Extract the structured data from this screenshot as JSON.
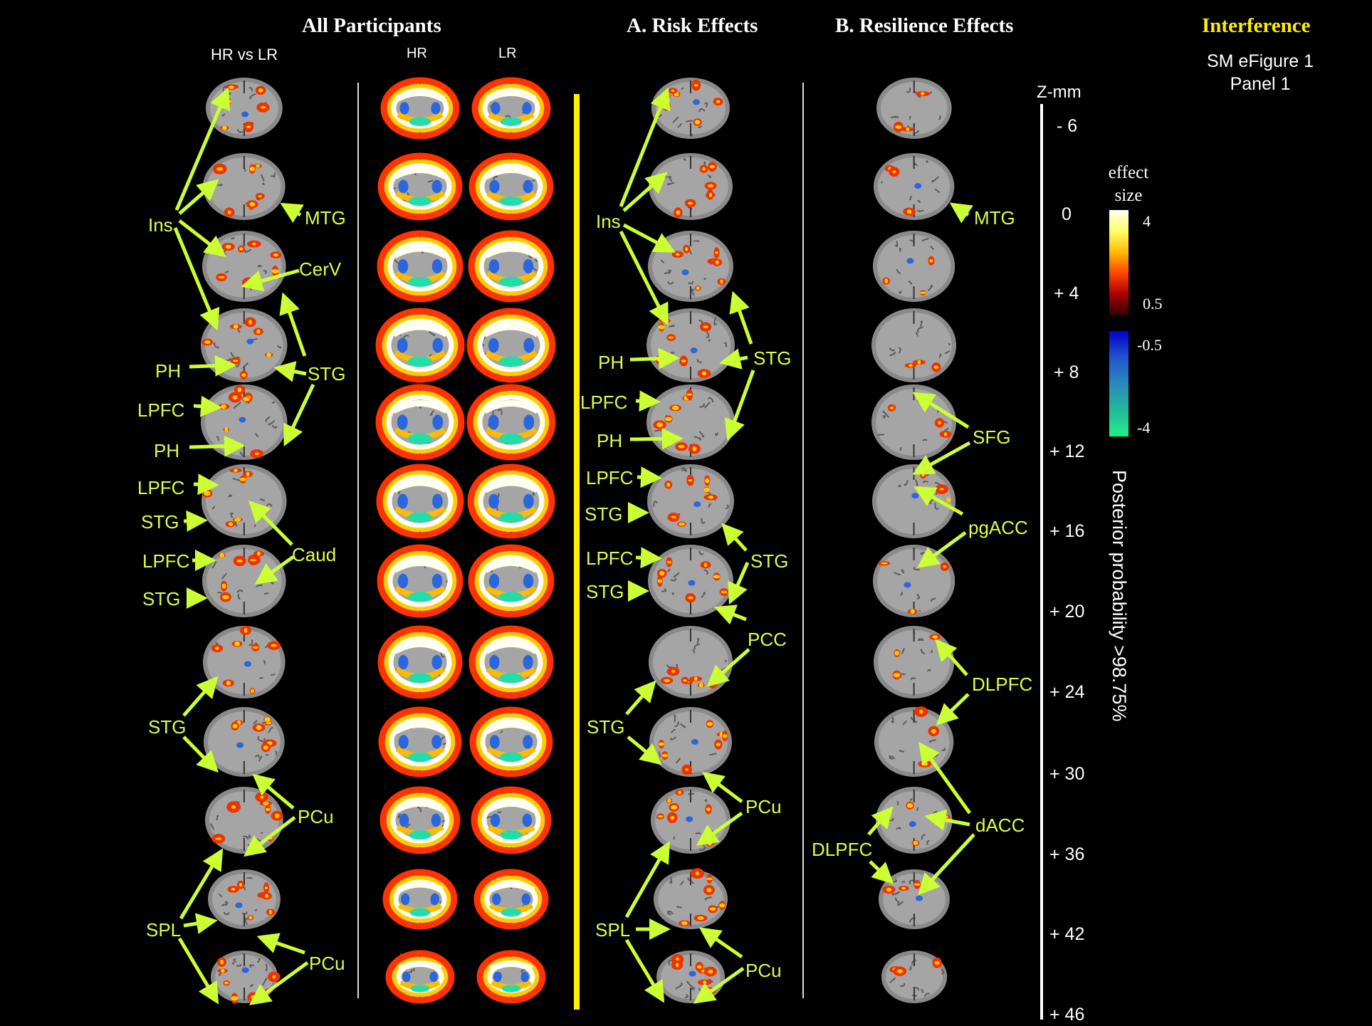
{
  "headers": {
    "all_participants": "All Participants",
    "risk": "A. Risk Effects",
    "resilience": "B. Resilience Effects",
    "interference": "Interference"
  },
  "subheaders": {
    "hr_vs_lr": "HR vs LR",
    "hr": "HR",
    "lr": "LR"
  },
  "caption": {
    "line1": "SM eFigure 1",
    "line2": "Panel 1"
  },
  "z_axis": {
    "title": "Z-mm",
    "ticks": [
      "- 6",
      "0",
      "+ 4",
      "+ 8",
      "+ 12",
      "+ 16",
      "+ 20",
      "+ 24",
      "+ 30",
      "+ 36",
      "+ 42",
      "+ 46"
    ]
  },
  "colorbar": {
    "title_line1": "effect",
    "title_line2": "size",
    "pos_max": "4",
    "pos_min": "0.5",
    "neg_max": "-0.5",
    "neg_min": "-4",
    "pos_colors": [
      "#fffff0",
      "#ffff66",
      "#ffbb00",
      "#ff4400",
      "#aa0000",
      "#300000"
    ],
    "neg_colors": [
      "#0000cc",
      "#2255cc",
      "#2a88bb",
      "#22bb99",
      "#22ee88"
    ]
  },
  "threshold_label": "Posterior probability >98.75%",
  "region_labels": {
    "hrlr": {
      "ins": "Ins",
      "mtg": "MTG",
      "cerv": "CerV",
      "ph1": "PH",
      "stg1": "STG",
      "lpfc1": "LPFC",
      "ph2": "PH",
      "lpfc2": "LPFC",
      "stg2": "STG",
      "caud": "Caud",
      "lpfc3": "LPFC",
      "stg3": "STG",
      "stg4": "STG",
      "pcu1": "PCu",
      "spl": "SPL",
      "pcu2": "PCu"
    },
    "risk": {
      "ins": "Ins",
      "ph1": "PH",
      "stg1": "STG",
      "lpfc1": "LPFC",
      "ph2": "PH",
      "lpfc2": "LPFC",
      "stg2": "STG",
      "lpfc3": "LPFC",
      "stg3": "STG",
      "stg4": "STG",
      "pcc": "PCC",
      "stg5": "STG",
      "pcu1": "PCu",
      "spl": "SPL",
      "pcu2": "PCu"
    },
    "resilience": {
      "mtg": "MTG",
      "sfg": "SFG",
      "pgacc": "pgACC",
      "dlpfc1": "DLPFC",
      "dacc": "dACC",
      "dlpfc2": "DLPFC"
    }
  },
  "colors": {
    "label": "#ddff44",
    "arrow": "#ccff33",
    "divider": "#ffee00",
    "header_interference": "#ffee00"
  }
}
